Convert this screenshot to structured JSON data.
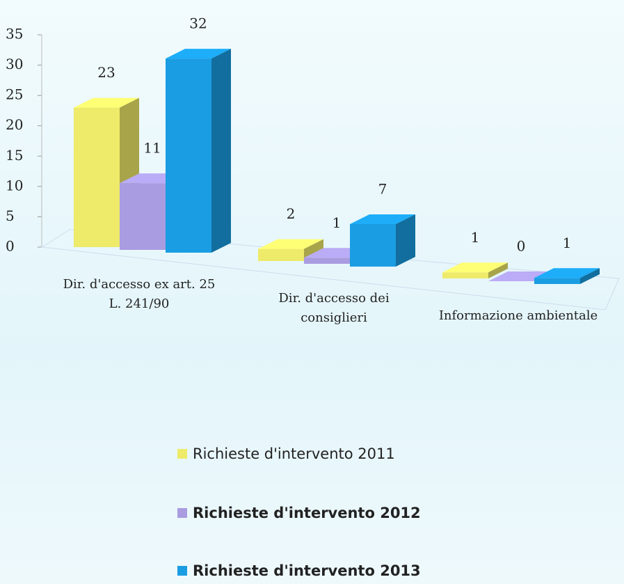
{
  "chart_data": {
    "type": "bar3d",
    "categories": [
      "Dir. d'accesso ex art. 25 L. 241/90",
      "Dir. d'accesso dei consiglieri",
      "Informazione ambientale"
    ],
    "series": [
      {
        "name": "Richieste d'intervento 2011",
        "color": "#eeea6a",
        "values": [
          23,
          2,
          1
        ]
      },
      {
        "name": "Richieste d'intervento 2012",
        "color": "#a99ce0",
        "values": [
          11,
          1,
          0
        ]
      },
      {
        "name": "Richieste d'intervento 2013",
        "color": "#1a9de2",
        "values": [
          32,
          7,
          1
        ]
      }
    ],
    "ylim": [
      0,
      35
    ],
    "yticks": [
      0,
      5,
      10,
      15,
      20,
      25,
      30,
      35
    ],
    "legend": "bottom"
  }
}
